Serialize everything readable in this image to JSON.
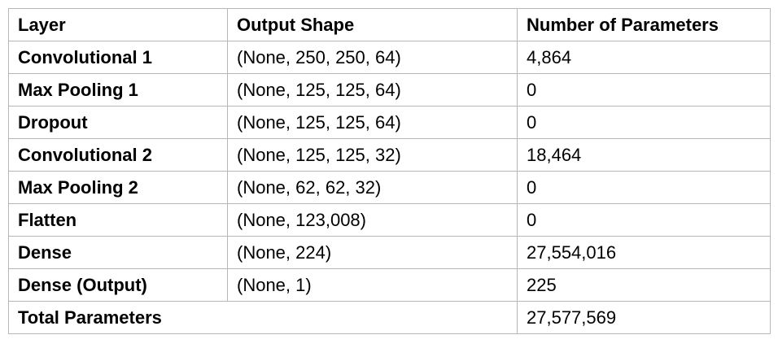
{
  "table": {
    "headers": [
      "Layer",
      "Output Shape",
      "Number of Parameters"
    ],
    "rows": [
      {
        "layer": "Convolutional 1",
        "shape": "(None, 250, 250, 64)",
        "params": "4,864"
      },
      {
        "layer": "Max Pooling 1",
        "shape": "(None, 125, 125, 64)",
        "params": "0"
      },
      {
        "layer": "Dropout",
        "shape": "(None, 125, 125, 64)",
        "params": "0"
      },
      {
        "layer": "Convolutional 2",
        "shape": "(None, 125, 125, 32)",
        "params": "18,464"
      },
      {
        "layer": "Max Pooling 2",
        "shape": "(None, 62, 62, 32)",
        "params": "0"
      },
      {
        "layer": "Flatten",
        "shape": "(None, 123,008)",
        "params": "0"
      },
      {
        "layer": "Dense",
        "shape": "(None, 224)",
        "params": "27,554,016"
      },
      {
        "layer": "Dense (Output)",
        "shape": "(None, 1)",
        "params": "225"
      }
    ],
    "total": {
      "label": "Total Parameters",
      "value": "27,577,569"
    }
  }
}
